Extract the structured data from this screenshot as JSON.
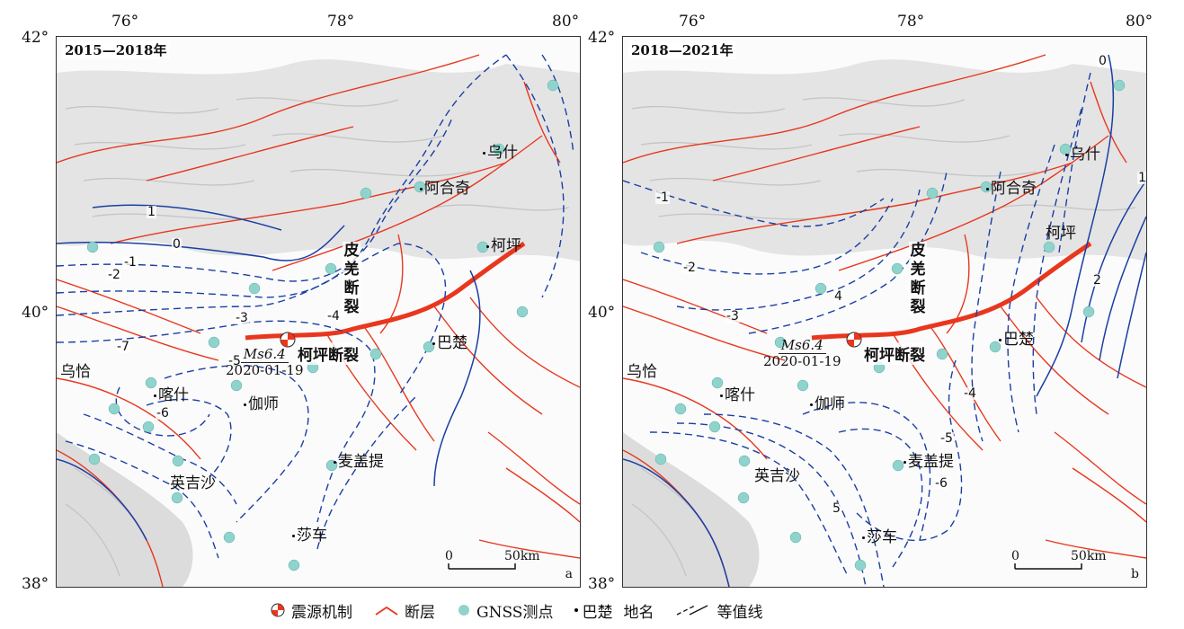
{
  "axes": {
    "lon_ticks": [
      "76°",
      "78°",
      "80°"
    ],
    "lat_top": "42°",
    "lat_mid": "40°",
    "lat_bottom": "38°"
  },
  "panels": [
    {
      "id": "a",
      "period": "2015—2018年",
      "letter": "a",
      "contours": [
        {
          "label": "1",
          "color": "#1a3fa3"
        },
        {
          "label": "0",
          "color": "#1a3fa3"
        },
        {
          "label": "-1",
          "color": "#1a3fa3"
        },
        {
          "label": "-2",
          "color": "#1a3fa3"
        },
        {
          "label": "-3",
          "color": "#1a3fa3"
        },
        {
          "label": "-4",
          "color": "#1a3fa3"
        },
        {
          "label": "-5",
          "color": "#1a3fa3"
        },
        {
          "label": "-6",
          "color": "#1a3fa3"
        },
        {
          "label": "-7",
          "color": "#1a3fa3"
        }
      ]
    },
    {
      "id": "b",
      "period": "2018—2021年",
      "letter": "b",
      "contours": [
        {
          "label": "1",
          "color": "#1a3fa3"
        },
        {
          "label": "0",
          "color": "#1a3fa3"
        },
        {
          "label": "-1",
          "color": "#1a3fa3"
        },
        {
          "label": "-2",
          "color": "#1a3fa3"
        },
        {
          "label": "-3",
          "color": "#1a3fa3"
        },
        {
          "label": "-4",
          "color": "#1a3fa3"
        },
        {
          "label": "-5",
          "color": "#1a3fa3"
        },
        {
          "label": "-6",
          "color": "#1a3fa3"
        },
        {
          "label": "2",
          "color": "#1a3fa3"
        },
        {
          "label": "4",
          "color": "#1a3fa3"
        },
        {
          "label": "5",
          "color": "#1a3fa3"
        }
      ]
    }
  ],
  "places": [
    "乌什",
    "阿合奇",
    "柯坪",
    "巴楚",
    "乌恰",
    "喀什",
    "伽师",
    "英吉沙",
    "麦盖提",
    "莎车"
  ],
  "fault_labels": {
    "piqiang": "皮羌断裂",
    "keping": "柯坪断裂"
  },
  "earthquake": {
    "magnitude": "Ms6.4",
    "date": "2020-01-19"
  },
  "scalebar": {
    "start": "0",
    "end": "50km"
  },
  "legend": {
    "focal": "震源机制",
    "fault": "断层",
    "gnss": "GNSS测点",
    "place_example": "巴楚",
    "place": "地名",
    "contour": "等值线"
  },
  "colors": {
    "fault": "#e8371e",
    "main_fault": "#e8371e",
    "gnss": "#8fd3cc",
    "contour": "#1a3fa3",
    "relief": "#d9d9d9"
  }
}
